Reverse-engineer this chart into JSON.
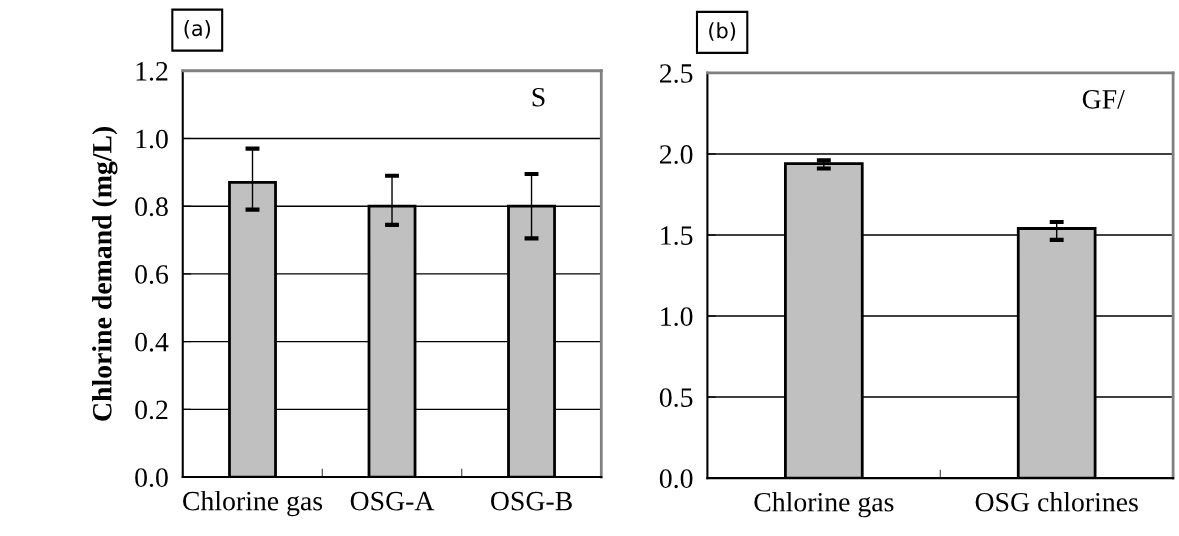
{
  "chart_data": [
    {
      "type": "bar",
      "title": "(a)",
      "ylabel": "Chlorine demand (mg/L)",
      "categories": [
        "Chlorine gas",
        "OSG-A",
        "OSG-B"
      ],
      "values": [
        0.87,
        0.8,
        0.8
      ],
      "errors": [
        [
          0.79,
          0.97
        ],
        [
          0.745,
          0.89
        ],
        [
          0.705,
          0.895
        ]
      ],
      "color": "#c0c0c0",
      "ylim": [
        0,
        1.2
      ],
      "yticks": [
        {
          "value": 0,
          "label": "0.0"
        },
        0.2,
        0.4,
        0.6,
        0.8,
        {
          "value": 1,
          "label": "1.0"
        },
        1.2
      ],
      "grid": "y",
      "annotations": [
        "S"
      ]
    },
    {
      "type": "bar",
      "title": "(b)",
      "categories": [
        "Chlorine gas",
        "OSG chlorines"
      ],
      "values": [
        1.94,
        1.54
      ],
      "errors": [
        [
          1.91,
          1.96
        ],
        [
          1.47,
          1.58
        ]
      ],
      "color": "#c0c0c0",
      "ylim": [
        0,
        2.5
      ],
      "yticks": [
        {
          "value": 0,
          "label": "0.0"
        },
        0.5,
        {
          "value": 1,
          "label": "1.0"
        },
        1.5,
        {
          "value": 2,
          "label": "2.0"
        },
        2.5
      ],
      "grid": "y",
      "annotations": [
        "GF/"
      ]
    }
  ]
}
